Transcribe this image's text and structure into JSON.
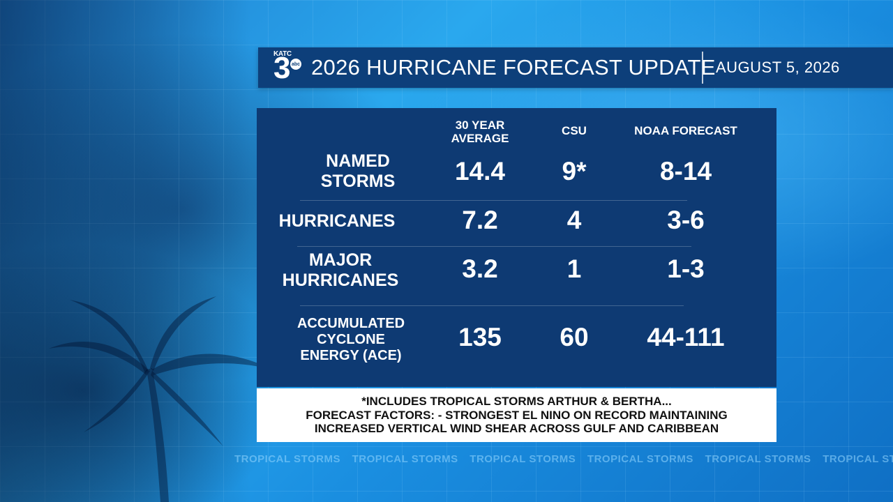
{
  "header": {
    "logo_call_sign": "KATC",
    "logo_number": "3",
    "logo_network": "abc",
    "title": "2026 HURRICANE FORECAST UPDATE",
    "date": "AUGUST 5, 2026"
  },
  "table": {
    "columns": [
      "30 YEAR\nAVERAGE",
      "CSU",
      "NOAA FORECAST"
    ],
    "rows": [
      {
        "label": "NAMED\nSTORMS",
        "values": [
          "14.4",
          "9*",
          "8-14"
        ]
      },
      {
        "label": "HURRICANES",
        "values": [
          "7.2",
          "4",
          "3-6"
        ]
      },
      {
        "label": "MAJOR\nHURRICANES",
        "values": [
          "3.2",
          "1",
          "1-3"
        ]
      },
      {
        "label": "ACCUMULATED\nCYCLONE\nENERGY (ACE)",
        "values": [
          "135",
          "60",
          "44-111"
        ]
      }
    ]
  },
  "footer": {
    "line1": "*INCLUDES TROPICAL STORMS ARTHUR & BERTHA...",
    "line2": "FORECAST FACTORS: - STRONGEST EL NINO ON RECORD MAINTAINING",
    "line3": "INCREASED VERTICAL WIND SHEAR ACROSS GULF AND CARIBBEAN"
  },
  "ticker": {
    "text": "TROPICAL STORMS"
  }
}
